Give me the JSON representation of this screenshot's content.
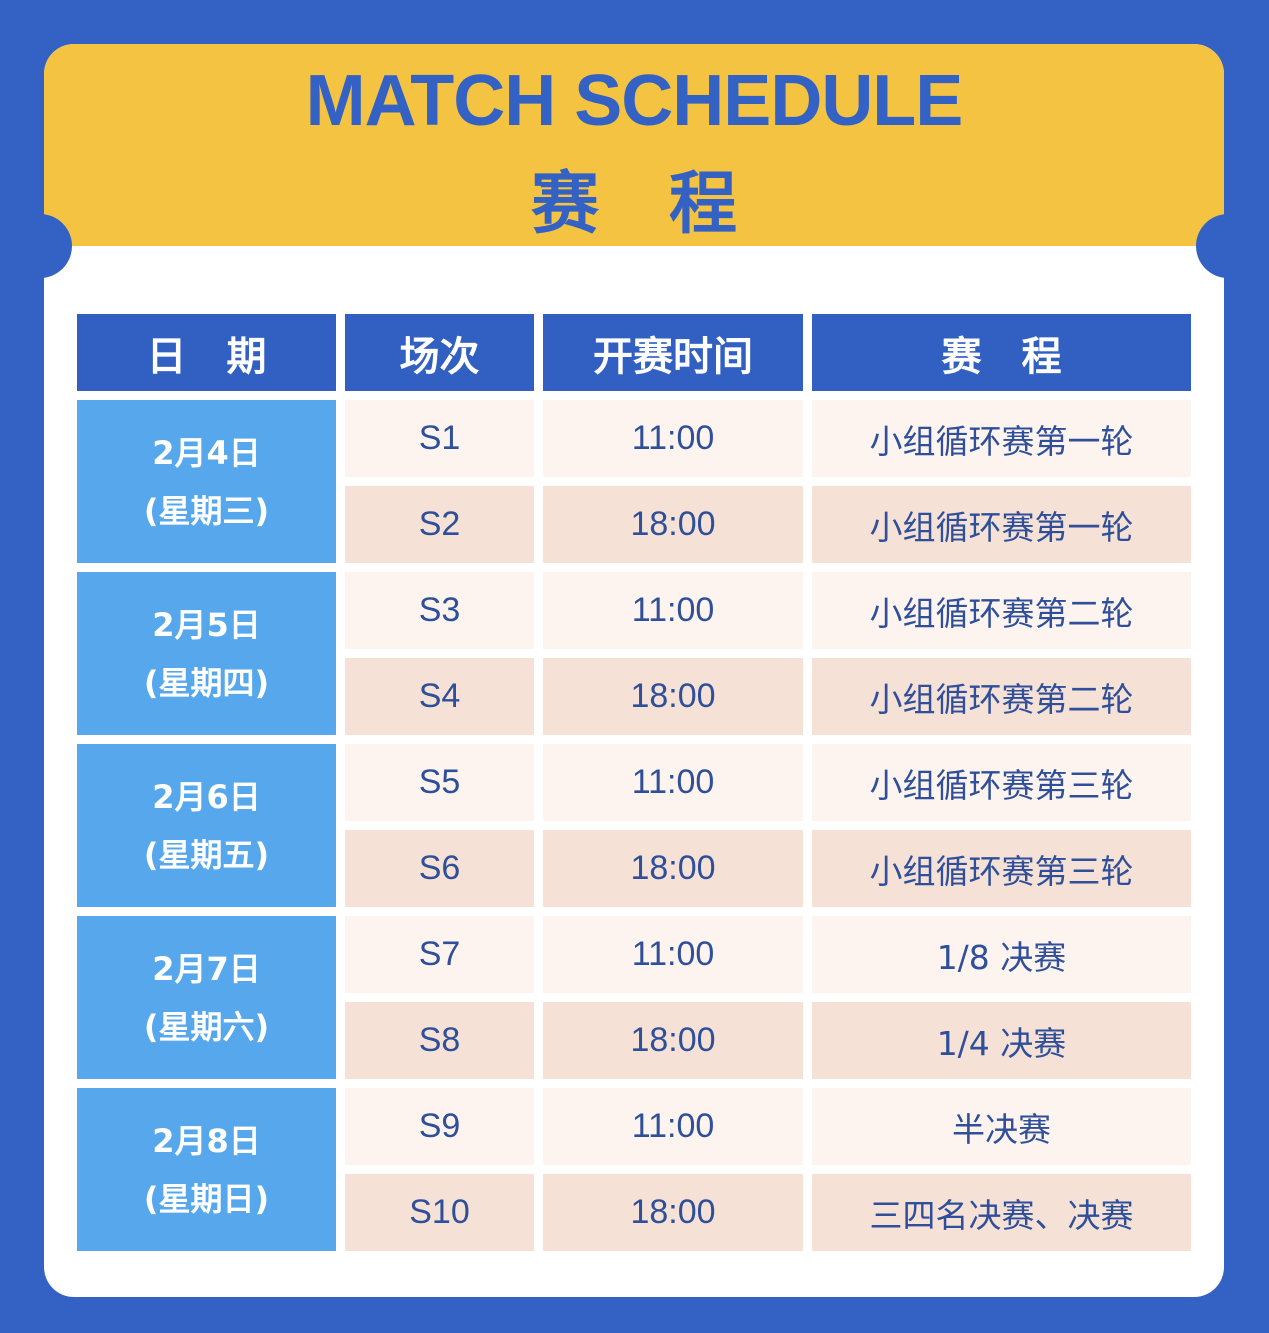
{
  "title": {
    "en": "MATCH SCHEDULE",
    "zh": "赛程"
  },
  "colors": {
    "background": "#3362c4",
    "banner": "#f5c342",
    "header": "#3260c2",
    "date_cell": "#56a7ec",
    "row_light": "#fdf3ef",
    "row_dark": "#f5e1d5",
    "text": "#2f4f9a"
  },
  "table": {
    "headers": [
      "日期",
      "场次",
      "开赛时间",
      "赛程"
    ],
    "days": [
      {
        "date": "2月4日",
        "weekday": "(星期三)",
        "matches": [
          {
            "match": "S1",
            "time": "11:00",
            "stage": "小组循环赛第一轮"
          },
          {
            "match": "S2",
            "time": "18:00",
            "stage": "小组循环赛第一轮"
          }
        ]
      },
      {
        "date": "2月5日",
        "weekday": "(星期四)",
        "matches": [
          {
            "match": "S3",
            "time": "11:00",
            "stage": "小组循环赛第二轮"
          },
          {
            "match": "S4",
            "time": "18:00",
            "stage": "小组循环赛第二轮"
          }
        ]
      },
      {
        "date": "2月6日",
        "weekday": "(星期五)",
        "matches": [
          {
            "match": "S5",
            "time": "11:00",
            "stage": "小组循环赛第三轮"
          },
          {
            "match": "S6",
            "time": "18:00",
            "stage": "小组循环赛第三轮"
          }
        ]
      },
      {
        "date": "2月7日",
        "weekday": "(星期六)",
        "matches": [
          {
            "match": "S7",
            "time": "11:00",
            "stage": "1/8 决赛"
          },
          {
            "match": "S8",
            "time": "18:00",
            "stage": "1/4 决赛"
          }
        ]
      },
      {
        "date": "2月8日",
        "weekday": "(星期日)",
        "matches": [
          {
            "match": "S9",
            "time": "11:00",
            "stage": "半决赛"
          },
          {
            "match": "S10",
            "time": "18:00",
            "stage": "三四名决赛、决赛"
          }
        ]
      }
    ]
  }
}
